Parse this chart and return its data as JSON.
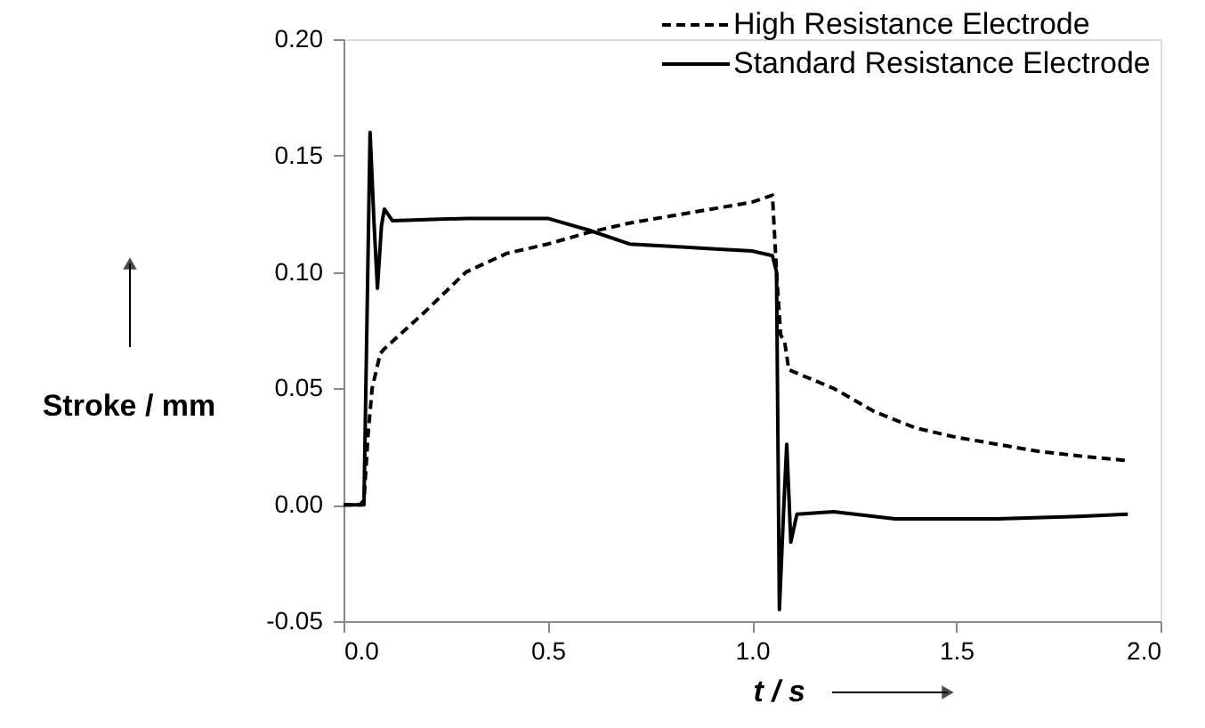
{
  "chart_data": {
    "type": "line",
    "xlabel": "t / s",
    "ylabel": "Stroke / mm",
    "xlim": [
      0,
      2
    ],
    "xticks": [
      {
        "value": 0,
        "label": "0.0"
      },
      {
        "value": 0.5,
        "label": "0.5"
      },
      {
        "value": 1,
        "label": "1.0"
      },
      {
        "value": 1.5,
        "label": "1.5"
      },
      {
        "value": 2,
        "label": "2.0"
      }
    ],
    "ylim": [
      -0.05,
      0.2
    ],
    "yticks": [
      {
        "value": -0.05,
        "label": "-0.05"
      },
      {
        "value": 0,
        "label": "0.00"
      },
      {
        "value": 0.05,
        "label": "0.05"
      },
      {
        "value": 0.1,
        "label": "0.10"
      },
      {
        "value": 0.15,
        "label": "0.15"
      },
      {
        "value": 0.2,
        "label": "0.20"
      }
    ],
    "grid": false,
    "legend": "top right",
    "marker": "none",
    "series": [
      {
        "name": "High Resistance Electrode",
        "color": "#000000",
        "line_style": "dashed",
        "x": [
          0,
          0.04,
          0.05,
          0.06,
          0.07,
          0.09,
          0.1,
          0.2,
          0.3,
          0.4,
          0.5,
          0.6,
          0.7,
          0.8,
          0.9,
          1.0,
          1.05,
          1.06,
          1.07,
          1.08,
          1.09,
          1.2,
          1.3,
          1.4,
          1.5,
          1.6,
          1.7,
          1.8,
          1.92
        ],
        "values": [
          0,
          0,
          0.002,
          0.03,
          0.05,
          0.065,
          0.067,
          0.083,
          0.1,
          0.108,
          0.112,
          0.117,
          0.121,
          0.124,
          0.127,
          0.13,
          0.133,
          0.1,
          0.073,
          0.07,
          0.058,
          0.05,
          0.04,
          0.033,
          0.029,
          0.026,
          0.023,
          0.021,
          0.019
        ]
      },
      {
        "name": "Standard Resistance Electrode",
        "color": "#000000",
        "line_style": "solid",
        "x": [
          0,
          0.04,
          0.05,
          0.065,
          0.075,
          0.083,
          0.093,
          0.1,
          0.12,
          0.3,
          0.5,
          0.6,
          0.7,
          0.8,
          0.9,
          1.0,
          1.05,
          1.06,
          1.067,
          1.078,
          1.085,
          1.095,
          1.11,
          1.2,
          1.35,
          1.6,
          1.8,
          1.92
        ],
        "values": [
          0,
          0,
          0.0,
          0.16,
          0.12,
          0.093,
          0.12,
          0.127,
          0.122,
          0.123,
          0.123,
          0.118,
          0.112,
          0.111,
          0.11,
          0.109,
          0.107,
          0.1,
          -0.045,
          0.0,
          0.026,
          -0.016,
          -0.004,
          -0.003,
          -0.006,
          -0.006,
          -0.005,
          -0.004
        ]
      }
    ]
  }
}
